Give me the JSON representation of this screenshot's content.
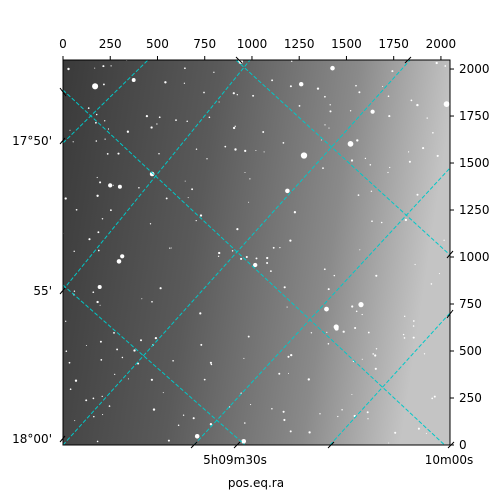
{
  "chart_data": {
    "type": "image",
    "xlabel": "pos.eq.ra",
    "ylabel": "",
    "pixel_x": {
      "ticks": [
        0,
        250,
        500,
        750,
        1000,
        1250,
        1500,
        1750,
        2000
      ],
      "range": [
        0,
        2048
      ]
    },
    "pixel_y": {
      "ticks": [
        0,
        250,
        500,
        750,
        1000,
        1250,
        1500,
        1750,
        2000
      ],
      "range": [
        0,
        2048
      ]
    },
    "ra_ticks": [
      {
        "label": "5h09m30s"
      },
      {
        "label": "10m00s"
      }
    ],
    "dec_ticks": [
      {
        "label": "17°50'"
      },
      {
        "label": "55'"
      },
      {
        "label": "18°00'"
      }
    ],
    "grid": true,
    "grid_color": "#00c8c8",
    "background": "grayscale star field, darker on left, brighter on right"
  }
}
